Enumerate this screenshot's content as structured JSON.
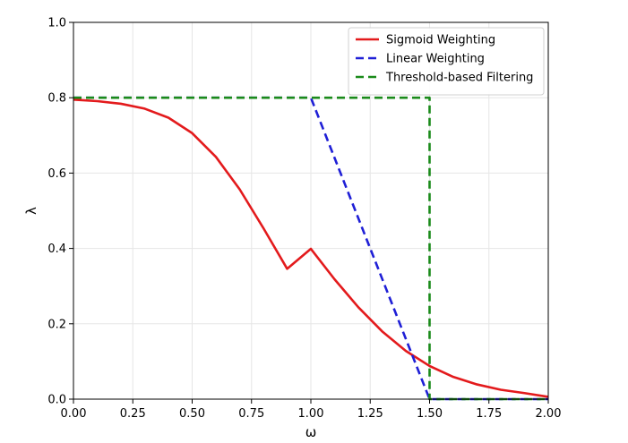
{
  "chart_data": {
    "type": "line",
    "xlabel": "ω",
    "ylabel": "λ",
    "xlim": [
      0,
      2
    ],
    "ylim": [
      0,
      1
    ],
    "xticks": [
      0,
      0.25,
      0.5,
      0.75,
      1.0,
      1.25,
      1.5,
      1.75,
      2.0
    ],
    "xtick_labels": [
      "0.00",
      "0.25",
      "0.50",
      "0.75",
      "1.00",
      "1.25",
      "1.50",
      "1.75",
      "2.00"
    ],
    "yticks": [
      0,
      0.2,
      0.4,
      0.6,
      0.8,
      1.0
    ],
    "ytick_labels": [
      "0.0",
      "0.2",
      "0.4",
      "0.6",
      "0.8",
      "1.0"
    ],
    "grid": true,
    "legend_position": "top-right",
    "series": [
      {
        "name": "Sigmoid Weighting",
        "color": "#e31a1c",
        "style": "solid",
        "x": [
          0,
          0.1,
          0.2,
          0.3,
          0.4,
          0.5,
          0.6,
          0.7,
          0.8,
          0.9,
          1.0,
          1.1,
          1.2,
          1.3,
          1.4,
          1.5,
          1.6,
          1.7,
          1.8,
          1.9,
          2.0
        ],
        "y": [
          0.795,
          0.791,
          0.784,
          0.771,
          0.747,
          0.706,
          0.643,
          0.557,
          0.454,
          0.346,
          0.399,
          0.318,
          0.244,
          0.18,
          0.128,
          0.088,
          0.059,
          0.039,
          0.025,
          0.016,
          0.006
        ]
      },
      {
        "name": "Linear Weighting",
        "color": "#1f1fd6",
        "style": "dashed",
        "x": [
          0,
          1.0,
          1.5,
          2.0
        ],
        "y": [
          0.8,
          0.8,
          0.0,
          0.0
        ]
      },
      {
        "name": "Threshold-based Filtering",
        "color": "#1a8a1a",
        "style": "dashed",
        "x": [
          0,
          1.5,
          1.5,
          2.0
        ],
        "y": [
          0.8,
          0.8,
          0.0,
          0.0
        ]
      }
    ]
  }
}
